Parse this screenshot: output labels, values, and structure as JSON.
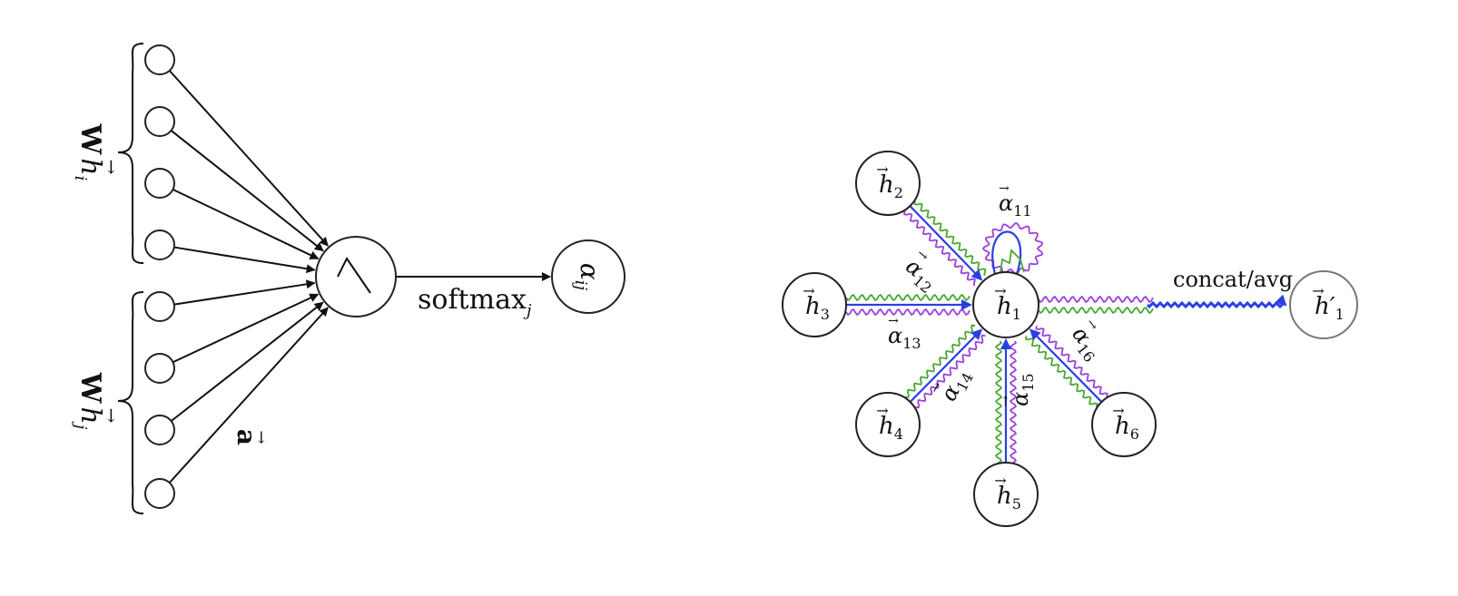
{
  "left_diagram": {
    "brace_top_label": {
      "main": "W",
      "vec": "h",
      "sub": "i"
    },
    "brace_bottom_label": {
      "main": "W",
      "vec": "h",
      "sub": "j"
    },
    "a_label": "a",
    "softmax_label": {
      "main": "softmax",
      "sub": "j"
    },
    "output_label": {
      "main": "α",
      "sub": "ij"
    }
  },
  "right_diagram": {
    "center_node": {
      "main": "h",
      "sub": "1"
    },
    "neighbor_nodes": [
      {
        "id": "h2",
        "main": "h",
        "sub": "2"
      },
      {
        "id": "h3",
        "main": "h",
        "sub": "3"
      },
      {
        "id": "h4",
        "main": "h",
        "sub": "4"
      },
      {
        "id": "h5",
        "main": "h",
        "sub": "5"
      },
      {
        "id": "h6",
        "main": "h",
        "sub": "6"
      }
    ],
    "output_node": {
      "main": "h",
      "prime": "′",
      "sub": "1"
    },
    "concat_label": "concat/avg",
    "attention_labels": [
      {
        "main": "α",
        "sub": "11"
      },
      {
        "main": "α",
        "sub": "12"
      },
      {
        "main": "α",
        "sub": "13"
      },
      {
        "main": "α",
        "sub": "14"
      },
      {
        "main": "α",
        "sub": "15"
      },
      {
        "main": "α",
        "sub": "16"
      }
    ],
    "colors": {
      "green": "#4aa832",
      "blue": "#2a3fe0",
      "purple": "#9b3fe0",
      "ink": "#111111"
    }
  }
}
